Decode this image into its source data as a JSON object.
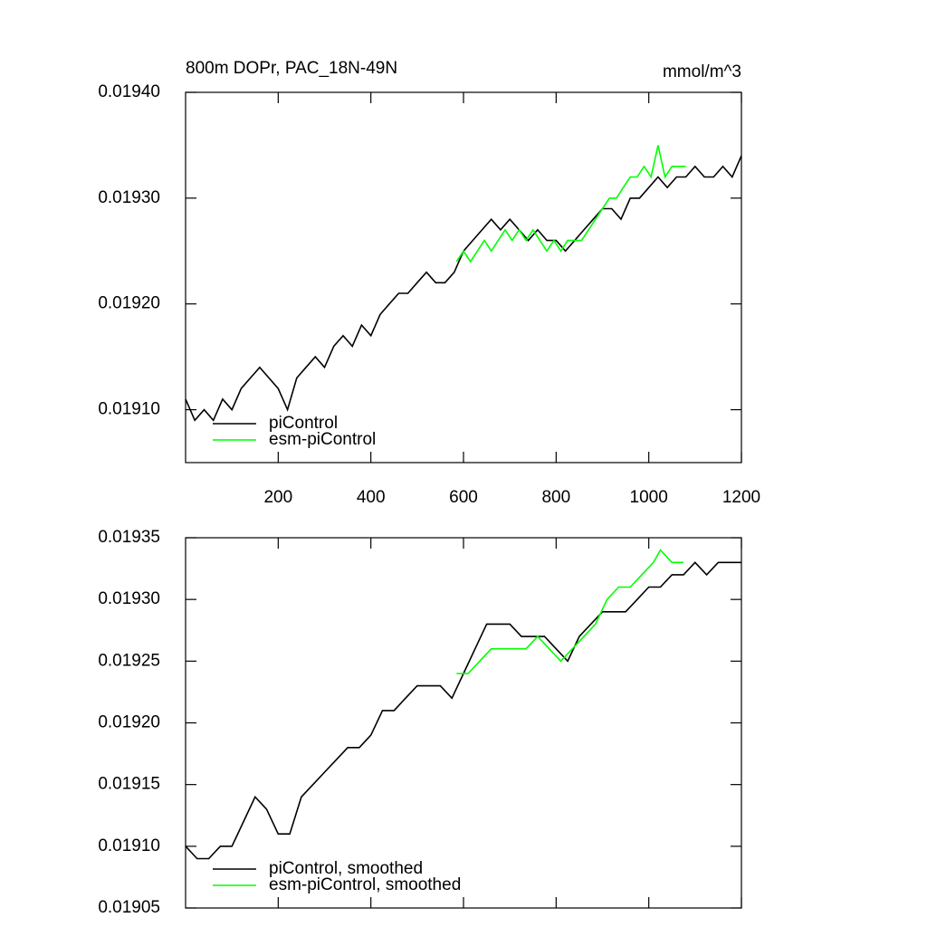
{
  "chart_data": [
    {
      "type": "line",
      "title": "800m DOPr, PAC_18N-49N",
      "subtitle": "mmol/m^3",
      "xlim": [
        0,
        1200
      ],
      "xticks": [
        200,
        400,
        600,
        800,
        1000,
        1200
      ],
      "ylim": [
        0.01905,
        0.0194
      ],
      "yticks": [
        {
          "value": 0.0191,
          "label": "0.01910"
        },
        {
          "value": 0.0192,
          "label": "0.01920"
        },
        {
          "value": 0.0193,
          "label": "0.01930"
        },
        {
          "value": 0.0194,
          "label": "0.01940"
        }
      ],
      "legend": "lower left",
      "series": [
        {
          "name": "piControl",
          "color": "#000000",
          "x": [
            0,
            20,
            40,
            60,
            80,
            100,
            120,
            140,
            160,
            180,
            200,
            220,
            240,
            260,
            280,
            300,
            320,
            340,
            360,
            380,
            400,
            420,
            440,
            460,
            480,
            500,
            520,
            540,
            560,
            580,
            600,
            620,
            640,
            660,
            680,
            700,
            720,
            740,
            760,
            780,
            800,
            820,
            840,
            860,
            880,
            900,
            920,
            940,
            960,
            980,
            1000,
            1020,
            1040,
            1060,
            1080,
            1100,
            1120,
            1140,
            1160,
            1180,
            1200
          ],
          "values": [
            0.01911,
            0.01909,
            0.0191,
            0.01909,
            0.01911,
            0.0191,
            0.01912,
            0.01913,
            0.01914,
            0.01913,
            0.01912,
            0.0191,
            0.01913,
            0.01914,
            0.01915,
            0.01914,
            0.01916,
            0.01917,
            0.01916,
            0.01918,
            0.01917,
            0.01919,
            0.0192,
            0.01921,
            0.01921,
            0.01922,
            0.01923,
            0.01922,
            0.01922,
            0.01923,
            0.01925,
            0.01926,
            0.01927,
            0.01928,
            0.01927,
            0.01928,
            0.01927,
            0.01926,
            0.01927,
            0.01926,
            0.01926,
            0.01925,
            0.01926,
            0.01927,
            0.01928,
            0.01929,
            0.01929,
            0.01928,
            0.0193,
            0.0193,
            0.01931,
            0.01932,
            0.01931,
            0.01932,
            0.01932,
            0.01933,
            0.01932,
            0.01932,
            0.01933,
            0.01932,
            0.01934
          ]
        },
        {
          "name": "esm-piControl",
          "color": "#00ff00",
          "x": [
            585,
            600,
            615,
            630,
            645,
            660,
            675,
            690,
            705,
            720,
            735,
            750,
            765,
            780,
            795,
            810,
            825,
            840,
            855,
            870,
            885,
            900,
            915,
            930,
            945,
            960,
            975,
            990,
            1005,
            1020,
            1035,
            1050,
            1065,
            1080
          ],
          "values": [
            0.01924,
            0.01925,
            0.01924,
            0.01925,
            0.01926,
            0.01925,
            0.01926,
            0.01927,
            0.01926,
            0.01927,
            0.01926,
            0.01927,
            0.01926,
            0.01925,
            0.01926,
            0.01925,
            0.01926,
            0.01926,
            0.01926,
            0.01927,
            0.01928,
            0.01929,
            0.0193,
            0.0193,
            0.01931,
            0.01932,
            0.01932,
            0.01933,
            0.01932,
            0.01935,
            0.01932,
            0.01933,
            0.01933,
            0.01933
          ]
        }
      ]
    },
    {
      "type": "line",
      "xlim": [
        0,
        1200
      ],
      "xticks": [
        200,
        400,
        600,
        800,
        1000,
        1200
      ],
      "ylim": [
        0.01905,
        0.01935
      ],
      "yticks": [
        0.01905,
        {
          "value": 0.0191,
          "label": "0.01910"
        },
        0.01915,
        {
          "value": 0.0192,
          "label": "0.01920"
        },
        0.01925,
        {
          "value": 0.0193,
          "label": "0.01930"
        },
        0.01935
      ],
      "legend": "lower left",
      "series": [
        {
          "name": "piControl, smoothed",
          "color": "#000000",
          "x": [
            0,
            25,
            50,
            75,
            100,
            125,
            150,
            175,
            200,
            225,
            250,
            275,
            300,
            325,
            350,
            375,
            400,
            425,
            450,
            475,
            500,
            525,
            550,
            575,
            600,
            625,
            650,
            675,
            700,
            725,
            750,
            775,
            800,
            825,
            850,
            875,
            900,
            925,
            950,
            975,
            1000,
            1025,
            1050,
            1075,
            1100,
            1125,
            1150,
            1175,
            1200
          ],
          "values": [
            0.0191,
            0.01909,
            0.01909,
            0.0191,
            0.0191,
            0.01912,
            0.01914,
            0.01913,
            0.01911,
            0.01911,
            0.01914,
            0.01915,
            0.01916,
            0.01917,
            0.01918,
            0.01918,
            0.01919,
            0.01921,
            0.01921,
            0.01922,
            0.01923,
            0.01923,
            0.01923,
            0.01922,
            0.01924,
            0.01926,
            0.01928,
            0.01928,
            0.01928,
            0.01927,
            0.01927,
            0.01927,
            0.01926,
            0.01925,
            0.01927,
            0.01928,
            0.01929,
            0.01929,
            0.01929,
            0.0193,
            0.01931,
            0.01931,
            0.01932,
            0.01932,
            0.01933,
            0.01932,
            0.01933,
            0.01933,
            0.01933
          ]
        },
        {
          "name": "esm-piControl, smoothed",
          "color": "#00ff00",
          "x": [
            585,
            610,
            635,
            660,
            685,
            710,
            735,
            760,
            785,
            810,
            835,
            860,
            885,
            910,
            935,
            960,
            985,
            1010,
            1025,
            1050,
            1075
          ],
          "values": [
            0.01924,
            0.01924,
            0.01925,
            0.01926,
            0.01926,
            0.01926,
            0.01926,
            0.01927,
            0.01926,
            0.01925,
            0.01926,
            0.01927,
            0.01928,
            0.0193,
            0.01931,
            0.01931,
            0.01932,
            0.01933,
            0.01934,
            0.01933,
            0.01933
          ]
        }
      ]
    }
  ]
}
